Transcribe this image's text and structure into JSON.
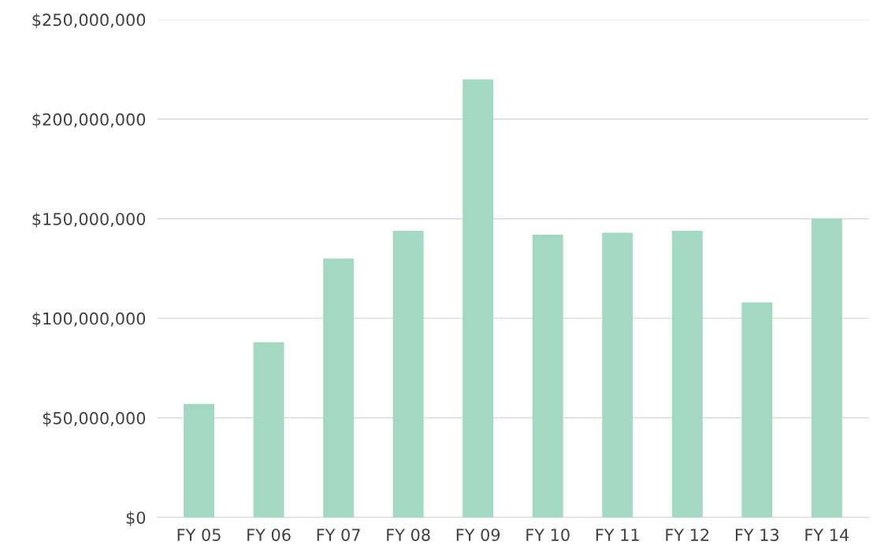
{
  "chart_data": {
    "type": "bar",
    "categories": [
      "FY 05",
      "FY 06",
      "FY 07",
      "FY 08",
      "FY 09",
      "FY 10",
      "FY 11",
      "FY 12",
      "FY 13",
      "FY 14"
    ],
    "values": [
      57000000,
      88000000,
      130000000,
      144000000,
      220000000,
      142000000,
      143000000,
      144000000,
      108000000,
      150000000
    ],
    "color": "#a3d9c3",
    "ylim": [
      0,
      250000000
    ],
    "yticks": [
      {
        "value": 0,
        "label": "$0"
      },
      {
        "value": 50000000,
        "label": "$50,000,000"
      },
      {
        "value": 100000000,
        "label": "$100,000,000"
      },
      {
        "value": 150000000,
        "label": "$150,000,000"
      },
      {
        "value": 200000000,
        "label": "$200,000,000"
      },
      {
        "value": 250000000,
        "label": "$250,000,000"
      }
    ],
    "grid": "y"
  }
}
